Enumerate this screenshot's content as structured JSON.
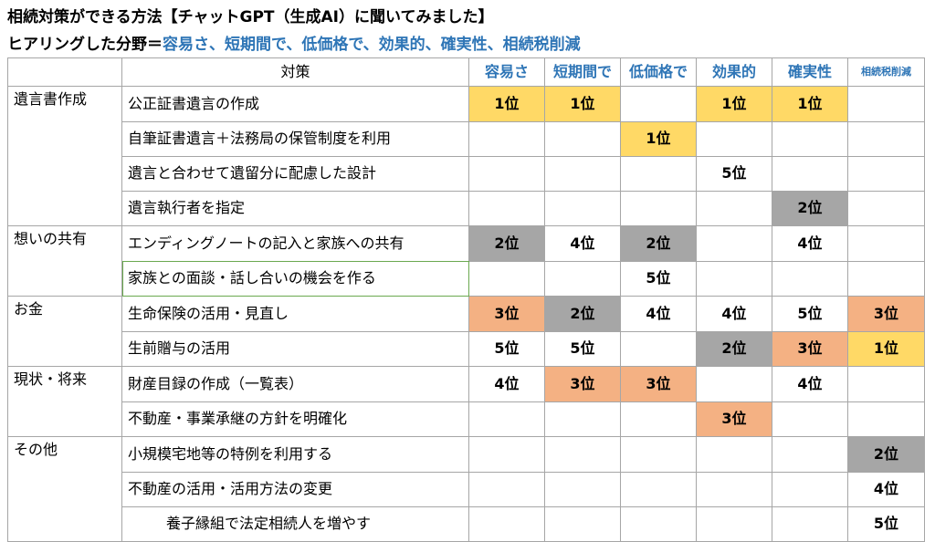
{
  "header": {
    "title": "相続対策ができる方法【チャットGPT（生成AI）に聞いてみました】",
    "subtitle_prefix": "ヒアリングした分野＝",
    "subtitle_items": "容易さ、短期間で、低価格で、効果的、確実性、相続税削減"
  },
  "table": {
    "measure_header": "対策",
    "columns": [
      "容易さ",
      "短期間で",
      "低価格で",
      "効果的",
      "確実性",
      "相続税削減"
    ],
    "groups": [
      {
        "category": "遺言書作成",
        "rows": [
          {
            "measure": "公正証書遺言の作成",
            "ranks": [
              "1位",
              "1位",
              "",
              "1位",
              "1位",
              ""
            ],
            "colors": [
              1,
              1,
              0,
              1,
              1,
              0
            ]
          },
          {
            "measure": "自筆証書遺言＋法務局の保管制度を利用",
            "ranks": [
              "",
              "",
              "1位",
              "",
              "",
              ""
            ],
            "colors": [
              0,
              0,
              1,
              0,
              0,
              0
            ]
          },
          {
            "measure": "遺言と合わせて遺留分に配慮した設計",
            "ranks": [
              "",
              "",
              "",
              "5位",
              "",
              ""
            ],
            "colors": [
              0,
              0,
              0,
              0,
              0,
              0
            ]
          },
          {
            "measure": "遺言執行者を指定",
            "ranks": [
              "",
              "",
              "",
              "",
              "2位",
              ""
            ],
            "colors": [
              0,
              0,
              0,
              0,
              2,
              0
            ]
          }
        ]
      },
      {
        "category": "想いの共有",
        "rows": [
          {
            "measure": "エンディングノートの記入と家族への共有",
            "ranks": [
              "2位",
              "4位",
              "2位",
              "",
              "4位",
              ""
            ],
            "colors": [
              2,
              0,
              2,
              0,
              0,
              0
            ]
          },
          {
            "measure": "家族との面談・話し合いの機会を作る",
            "ranks": [
              "",
              "",
              "5位",
              "",
              "",
              ""
            ],
            "colors": [
              0,
              0,
              0,
              0,
              0,
              0
            ]
          }
        ]
      },
      {
        "category": "お金",
        "rows": [
          {
            "measure": "生命保険の活用・見直し",
            "ranks": [
              "3位",
              "2位",
              "4位",
              "4位",
              "5位",
              "3位"
            ],
            "colors": [
              3,
              2,
              0,
              0,
              0,
              3
            ]
          },
          {
            "measure": "生前贈与の活用",
            "ranks": [
              "5位",
              "5位",
              "",
              "2位",
              "3位",
              "1位"
            ],
            "colors": [
              0,
              0,
              0,
              2,
              3,
              1
            ]
          }
        ]
      },
      {
        "category": "現状・将来",
        "rows": [
          {
            "measure": "財産目録の作成（一覧表）",
            "ranks": [
              "4位",
              "3位",
              "3位",
              "",
              "4位",
              ""
            ],
            "colors": [
              0,
              3,
              3,
              0,
              0,
              0
            ]
          },
          {
            "measure": "不動産・事業承継の方針を明確化",
            "ranks": [
              "",
              "",
              "",
              "3位",
              "",
              ""
            ],
            "colors": [
              0,
              0,
              0,
              3,
              0,
              0
            ]
          }
        ]
      },
      {
        "category": "その他",
        "rows": [
          {
            "measure": "小規模宅地等の特例を利用する",
            "ranks": [
              "",
              "",
              "",
              "",
              "",
              "2位"
            ],
            "colors": [
              0,
              0,
              0,
              0,
              0,
              2
            ]
          },
          {
            "measure": "不動産の活用・活用方法の変更",
            "ranks": [
              "",
              "",
              "",
              "",
              "",
              "4位"
            ],
            "colors": [
              0,
              0,
              0,
              0,
              0,
              0
            ]
          },
          {
            "measure": "養子縁組で法定相続人を増やす",
            "ranks": [
              "",
              "",
              "",
              "",
              "",
              "5位"
            ],
            "colors": [
              0,
              0,
              0,
              0,
              0,
              0
            ],
            "indent": true
          }
        ]
      }
    ]
  },
  "colors": {
    "rank1": "#ffd966",
    "rank2": "#a6a6a6",
    "rank3": "#f4b183",
    "header_blue": "#2e75b6"
  }
}
